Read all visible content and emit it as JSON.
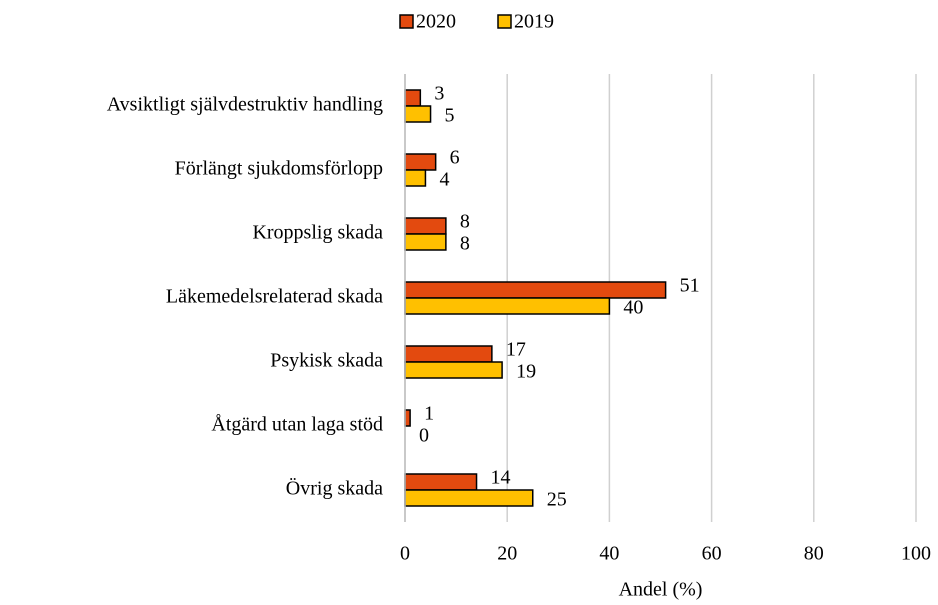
{
  "chart_data": {
    "type": "hbar",
    "categories": [
      "Avsiktligt självdestruktiv handling",
      "Förlängt sjukdomsförlopp",
      "Kroppslig skada",
      "Läkemedelsrelaterad skada",
      "Psykisk skada",
      "Åtgärd utan laga stöd",
      "Övrig skada"
    ],
    "series": [
      {
        "name": "2020",
        "color": "#e34a0f",
        "values": [
          3,
          6,
          8,
          51,
          17,
          1,
          14
        ]
      },
      {
        "name": "2019",
        "color": "#ffc000",
        "values": [
          5,
          4,
          8,
          40,
          19,
          0,
          25
        ]
      }
    ],
    "xlabel": "Andel (%)",
    "xlim": [
      0,
      100
    ],
    "xticks": [
      0,
      20,
      40,
      60,
      80,
      100
    ],
    "grid": true,
    "legend": "top"
  }
}
